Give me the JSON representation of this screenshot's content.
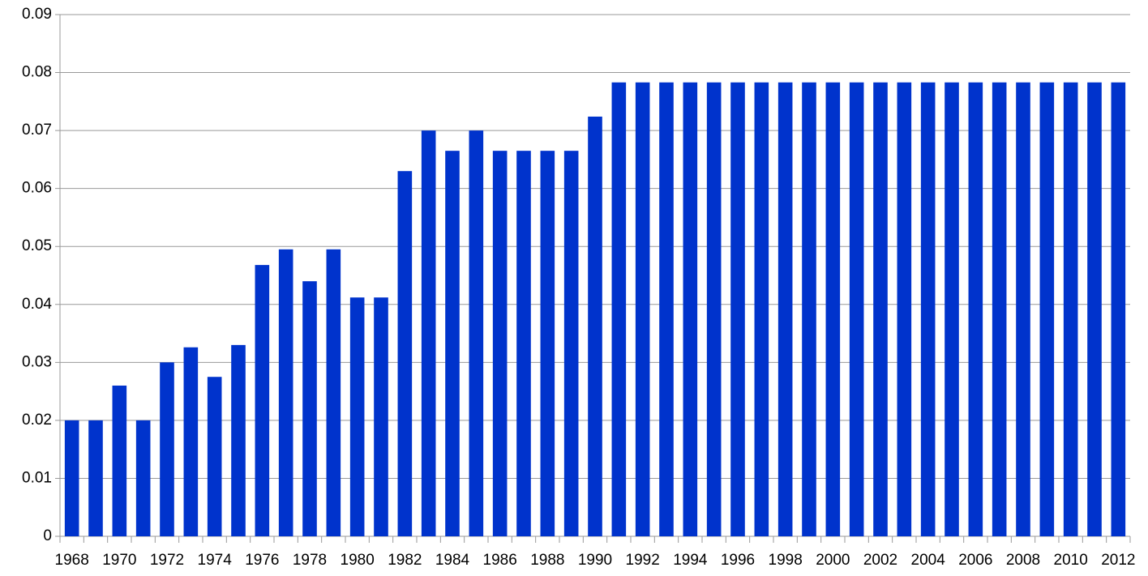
{
  "chart_data": {
    "type": "bar",
    "categories": [
      "1968",
      null,
      "1970",
      null,
      "1972",
      null,
      "1974",
      null,
      "1976",
      null,
      "1978",
      null,
      "1980",
      null,
      "1982",
      null,
      "1984",
      null,
      "1986",
      null,
      "1988",
      null,
      "1990",
      null,
      "1992",
      null,
      "1994",
      null,
      "1996",
      null,
      "1998",
      null,
      "2000",
      null,
      "2002",
      null,
      "2004",
      null,
      "2006",
      null,
      "2008",
      null,
      "2010",
      null,
      "2012"
    ],
    "values": [
      0.02,
      0.02,
      0.026,
      0.02,
      0.03,
      0.0326,
      0.0275,
      0.033,
      0.0468,
      0.0495,
      0.044,
      0.0495,
      0.0412,
      0.0412,
      0.063,
      0.07,
      0.0665,
      0.07,
      0.0665,
      0.0665,
      0.0665,
      0.0665,
      0.0724,
      0.0783,
      0.0783,
      0.0783,
      0.0783,
      0.0783,
      0.0783,
      0.0783,
      0.0783,
      0.0783,
      0.0783,
      0.0783,
      0.0783,
      0.0783,
      0.0783,
      0.0783,
      0.0783,
      0.0783,
      0.0783,
      0.0783,
      0.0783,
      0.0783,
      0.0783
    ],
    "color": "#0033cc",
    "ylim": [
      0,
      0.09
    ],
    "yticks": [
      0,
      0.01,
      0.02,
      0.03,
      0.04,
      0.05,
      0.06,
      0.07,
      0.08,
      0.09
    ],
    "grid": true
  }
}
